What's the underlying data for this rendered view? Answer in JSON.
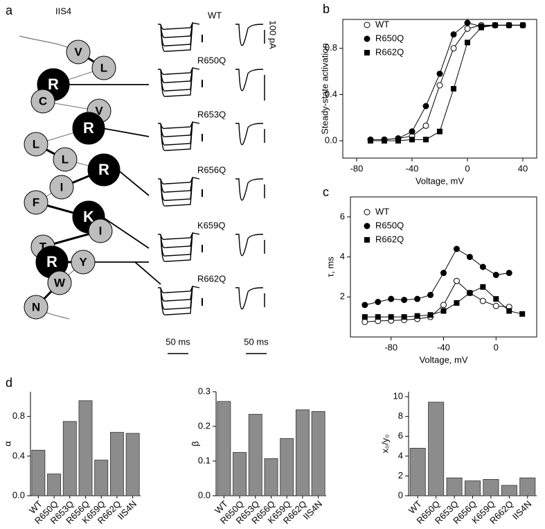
{
  "diagram": {
    "label": "a",
    "segment": "IIS4",
    "residues": [
      "V",
      "L",
      "R",
      "C",
      "V",
      "R",
      "L",
      "L",
      "R",
      "I",
      "F",
      "K",
      "I",
      "T",
      "R",
      "Y",
      "W",
      "N"
    ],
    "traces": [
      "WT",
      "R650Q",
      "R653Q",
      "R656Q",
      "K659Q",
      "R662Q"
    ],
    "current_scale": "100 pA",
    "time_scales": [
      "50 ms",
      "50 ms"
    ]
  },
  "chart_data": [
    {
      "type": "line",
      "label": "b",
      "ylabel": "Steady-state activation",
      "xlabel": "Voltage, mV",
      "x": [
        -70,
        -60,
        -50,
        -40,
        -30,
        -20,
        -10,
        0,
        10,
        20,
        30,
        40
      ],
      "series": [
        {
          "name": "WT",
          "marker": "open-circle",
          "color": "#000",
          "values": [
            null,
            0.01,
            0.02,
            0.04,
            0.13,
            0.48,
            0.8,
            0.97,
            1.0,
            1.0,
            1.0,
            1.0
          ]
        },
        {
          "name": "R650Q",
          "marker": "circle",
          "color": "#000",
          "values": [
            0.01,
            0.01,
            0.02,
            0.08,
            0.3,
            0.58,
            0.92,
            1.02,
            0.99,
            1.0,
            1.0,
            1.0
          ]
        },
        {
          "name": "R662Q",
          "marker": "square",
          "color": "#000",
          "values": [
            0.0,
            0.0,
            0.0,
            0.01,
            0.01,
            0.08,
            0.45,
            0.85,
            0.98,
            1.0,
            1.0,
            1.0
          ]
        }
      ],
      "xlim": [
        -90,
        50
      ],
      "ylim": [
        -0.15,
        1.05
      ],
      "xticks": [
        -80,
        -40,
        0,
        40
      ],
      "yticks": [
        {
          "value": 0,
          "label": "0.0"
        },
        0.4,
        0.8
      ]
    },
    {
      "type": "line",
      "label": "c",
      "ylabel": "τ, ms",
      "xlabel": "Voltage, mV",
      "x": [
        -100,
        -90,
        -80,
        -70,
        -60,
        -50,
        -40,
        -30,
        -20,
        -10,
        0,
        10,
        20
      ],
      "series": [
        {
          "name": "WT",
          "marker": "open-circle",
          "color": "#000",
          "values": [
            0.75,
            0.8,
            0.82,
            0.85,
            0.9,
            1.0,
            1.6,
            2.8,
            2.2,
            1.8,
            1.55,
            1.5,
            null
          ]
        },
        {
          "name": "R650Q",
          "marker": "circle",
          "color": "#000",
          "values": [
            1.6,
            1.75,
            1.9,
            1.85,
            1.9,
            2.1,
            3.2,
            4.4,
            4.0,
            3.5,
            3.1,
            3.2,
            null
          ]
        },
        {
          "name": "R662Q",
          "marker": "square",
          "color": "#000",
          "values": [
            1.0,
            1.0,
            1.0,
            1.0,
            1.05,
            1.1,
            1.3,
            1.7,
            2.2,
            2.5,
            1.9,
            1.3,
            1.15
          ]
        }
      ],
      "xlim": [
        -111,
        31
      ],
      "ylim": [
        0,
        7
      ],
      "xticks": [
        -80,
        -40,
        0
      ],
      "yticks": [
        2,
        4,
        6
      ]
    },
    {
      "type": "bar",
      "label": "d",
      "ylabel": "α",
      "color": "#8c8c8c",
      "categories": [
        "WT",
        "R650Q",
        "R653Q",
        "R656Q",
        "K659Q",
        "R662Q",
        "IIS4N"
      ],
      "values": [
        0.46,
        0.22,
        0.75,
        0.96,
        0.36,
        0.64,
        0.63
      ],
      "ylim": [
        0,
        1.05
      ],
      "yticks": [
        {
          "value": 0,
          "label": "0.0"
        },
        0.4,
        0.8
      ]
    },
    {
      "type": "bar",
      "ylabel": "β",
      "color": "#8c8c8c",
      "categories": [
        "WT",
        "R650Q",
        "R653Q",
        "R656Q",
        "K659Q",
        "R662Q",
        "IIS4N"
      ],
      "values": [
        0.272,
        0.125,
        0.235,
        0.107,
        0.165,
        0.248,
        0.243
      ],
      "ylim": [
        0,
        0.3
      ],
      "yticks": [
        {
          "value": 0,
          "label": "0.0"
        },
        0.1,
        0.2,
        0.3
      ]
    },
    {
      "type": "bar",
      "ylabel": "x₀/y₀",
      "color": "#8c8c8c",
      "categories": [
        "WT",
        "R650Q",
        "R653Q",
        "R656Q",
        "K659Q",
        "R662Q",
        "IIS4N"
      ],
      "values": [
        4.8,
        9.45,
        1.8,
        1.5,
        1.65,
        1.05,
        1.8
      ],
      "ylim": [
        0,
        10.5
      ],
      "yticks": [
        0,
        2,
        4,
        6,
        8,
        10
      ]
    }
  ]
}
